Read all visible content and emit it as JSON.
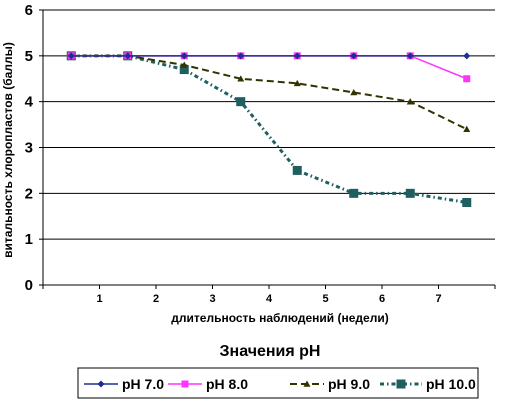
{
  "chart_data": {
    "type": "line",
    "xlabel": "длительность наблюдений (недели)",
    "ylabel": "витальность хлоропластов (баллы)",
    "legend_title": "Значения pH",
    "legend_position": "bottom",
    "x_tick_labels": [
      "1",
      "2",
      "3",
      "4",
      "5",
      "6",
      "7"
    ],
    "y_tick_labels": [
      "0",
      "1",
      "2",
      "3",
      "4",
      "5",
      "6"
    ],
    "ylim": [
      0,
      6
    ],
    "xlim": [
      0,
      8
    ],
    "grid": "horizontal",
    "series": [
      {
        "name": "pH 7.0",
        "color": "#1f2f8f",
        "marker": "diamond",
        "dash": "solid",
        "x": [
          0.5,
          1.5,
          2.5,
          3.5,
          4.5,
          5.5,
          6.5,
          7.5
        ],
        "values": [
          5,
          5,
          5,
          5,
          5,
          5,
          5,
          5
        ]
      },
      {
        "name": "pH 8.0",
        "color": "#ff33ff",
        "marker": "square",
        "dash": "solid",
        "x": [
          0.5,
          1.5,
          2.5,
          3.5,
          4.5,
          5.5,
          6.5,
          7.5
        ],
        "values": [
          5,
          5,
          5,
          5,
          5,
          5,
          5,
          4.5
        ]
      },
      {
        "name": "pH 9.0",
        "color": "#333300",
        "marker": "triangle",
        "dash": "dashed",
        "x": [
          0.5,
          1.5,
          2.5,
          3.5,
          4.5,
          5.5,
          6.5,
          7.5
        ],
        "values": [
          5,
          5,
          4.8,
          4.5,
          4.4,
          4.2,
          4.0,
          3.4
        ]
      },
      {
        "name": "pH 10.0",
        "color": "#1f5f5f",
        "marker": "square",
        "dash": "dashdot",
        "x": [
          0.5,
          1.5,
          2.5,
          3.5,
          4.5,
          5.5,
          6.5,
          7.5
        ],
        "values": [
          5,
          5,
          4.7,
          4.0,
          2.5,
          2.0,
          2.0,
          1.8
        ]
      }
    ]
  }
}
